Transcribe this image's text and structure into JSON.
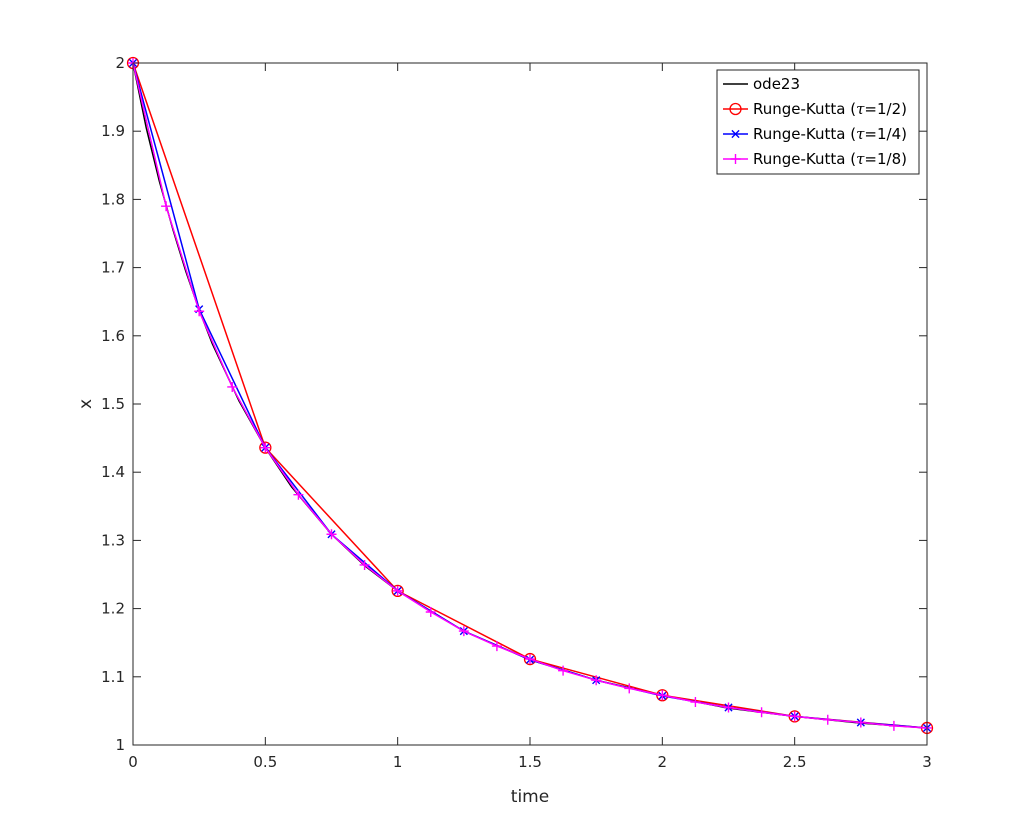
{
  "chart_data": {
    "type": "line",
    "xlabel": "time",
    "ylabel": "x",
    "xlim": [
      0,
      3
    ],
    "ylim": [
      1,
      2
    ],
    "x_ticks": [
      "0",
      "0.5",
      "1",
      "1.5",
      "2",
      "2.5",
      "3"
    ],
    "y_ticks": [
      "1",
      "1.1",
      "1.2",
      "1.3",
      "1.4",
      "1.5",
      "1.6",
      "1.7",
      "1.8",
      "1.9",
      "2"
    ],
    "grid": false,
    "legend_position": "top-right",
    "series": [
      {
        "name": "ode23",
        "color": "#000000",
        "marker": "none",
        "x": [
          0,
          0.05,
          0.1,
          0.15,
          0.2,
          0.25,
          0.3,
          0.4,
          0.5,
          0.6,
          0.75,
          0.875,
          1.0,
          1.25,
          1.5,
          1.75,
          2.0,
          2.25,
          2.5,
          2.75,
          3.0
        ],
        "y": [
          2.0,
          1.905,
          1.826,
          1.757,
          1.694,
          1.638,
          1.588,
          1.505,
          1.436,
          1.378,
          1.309,
          1.263,
          1.226,
          1.167,
          1.125,
          1.095,
          1.073,
          1.054,
          1.042,
          1.032,
          1.025
        ]
      },
      {
        "name": "Runge-Kutta (τ=1/2)",
        "label_main": "Runge-Kutta (",
        "label_tau": "τ",
        "label_rest": "=1/2)",
        "color": "#ff0000",
        "marker": "circle",
        "x": [
          0,
          0.5,
          1.0,
          1.5,
          2.0,
          2.5,
          3.0
        ],
        "y": [
          2.0,
          1.436,
          1.226,
          1.126,
          1.073,
          1.042,
          1.025
        ]
      },
      {
        "name": "Runge-Kutta (τ=1/4)",
        "label_main": "Runge-Kutta (",
        "label_tau": "τ",
        "label_rest": "=1/4)",
        "color": "#0000ff",
        "marker": "x",
        "x": [
          0,
          0.25,
          0.5,
          0.75,
          1.0,
          1.25,
          1.5,
          1.75,
          2.0,
          2.25,
          2.5,
          2.75,
          3.0
        ],
        "y": [
          2.0,
          1.639,
          1.436,
          1.309,
          1.226,
          1.167,
          1.125,
          1.095,
          1.072,
          1.055,
          1.042,
          1.033,
          1.025
        ]
      },
      {
        "name": "Runge-Kutta (τ=1/8)",
        "label_main": "Runge-Kutta (",
        "label_tau": "τ",
        "label_rest": "=1/8)",
        "color": "#ff00ff",
        "marker": "plus",
        "x": [
          0,
          0.125,
          0.25,
          0.375,
          0.5,
          0.625,
          0.75,
          0.875,
          1.0,
          1.125,
          1.25,
          1.375,
          1.5,
          1.625,
          1.75,
          1.875,
          2.0,
          2.125,
          2.25,
          2.375,
          2.5,
          2.625,
          2.75,
          2.875,
          3.0
        ],
        "y": [
          2.0,
          1.79,
          1.636,
          1.525,
          1.436,
          1.367,
          1.309,
          1.264,
          1.226,
          1.195,
          1.167,
          1.145,
          1.126,
          1.109,
          1.095,
          1.083,
          1.073,
          1.063,
          1.055,
          1.048,
          1.042,
          1.037,
          1.033,
          1.028,
          1.025
        ]
      }
    ]
  }
}
